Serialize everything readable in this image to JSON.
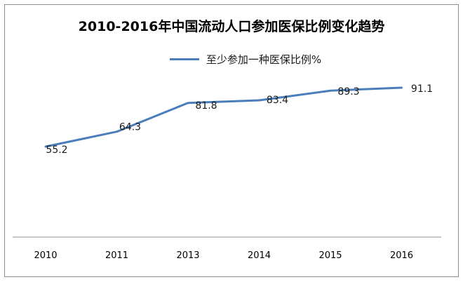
{
  "chart_data": {
    "type": "line",
    "title": "2010-2016年中国流动人口参加医保比例变化趋势",
    "categories": [
      "2010",
      "2011",
      "2013",
      "2014",
      "2015",
      "2016"
    ],
    "series": [
      {
        "name": "至少参加一种医保比例%",
        "values": [
          55.2,
          64.3,
          81.8,
          83.4,
          89.3,
          91.1
        ],
        "data_labels": [
          "55.2",
          "64.3",
          "81.8",
          "83.4",
          "89.3",
          "91.1"
        ],
        "color": "#4a7ebb"
      }
    ],
    "ylim": [
      30,
      100
    ],
    "grid": false,
    "legend": "top-center"
  }
}
